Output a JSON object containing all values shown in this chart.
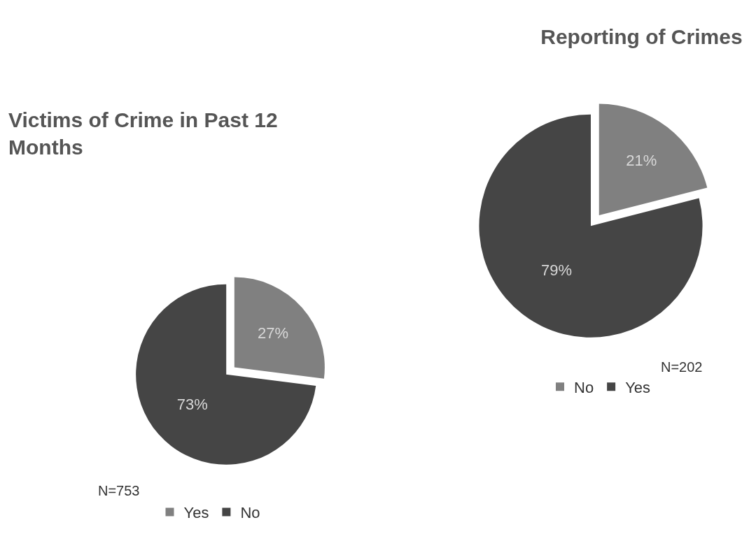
{
  "chart_data": [
    {
      "type": "pie",
      "title": "Victims of Crime in Past 12 Months",
      "categories": [
        "Yes",
        "No"
      ],
      "values": [
        27,
        73
      ],
      "colors": [
        "#808080",
        "#454545"
      ],
      "value_labels": [
        "27%",
        "73%"
      ],
      "annotations": [
        "N=753"
      ],
      "legend": "bottom"
    },
    {
      "type": "pie",
      "title": "Reporting of Crimes",
      "categories": [
        "No",
        "Yes"
      ],
      "values": [
        21,
        79
      ],
      "colors": [
        "#808080",
        "#454545"
      ],
      "value_labels": [
        "21%",
        "79%"
      ],
      "annotations": [
        "N=202"
      ],
      "legend": "bottom"
    }
  ]
}
